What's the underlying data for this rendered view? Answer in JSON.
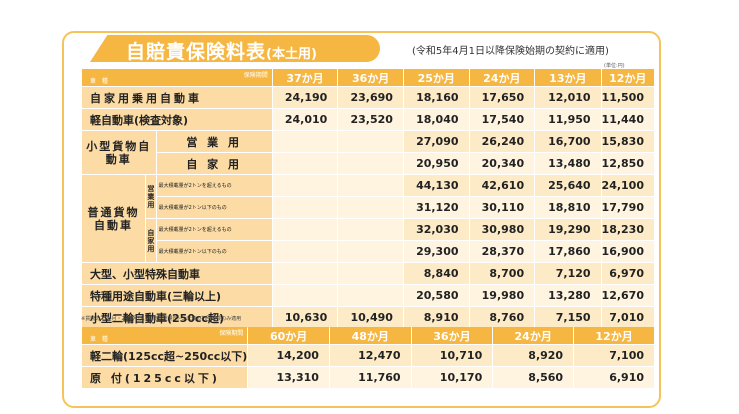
{
  "title": {
    "main": "自賠責保険料表",
    "sub": "(本土用)"
  },
  "note_date": "(令和5年4月1日以降保険始期の契約に適用)",
  "unit": "(単位:円)",
  "footnote": "※貨物の25か月・24か月は、車両総重量8トン未満の初回車検のみ適用",
  "corner": {
    "period": "保険期間",
    "car": "車 種"
  },
  "table1": {
    "headers": [
      "37か月",
      "36か月",
      "25か月",
      "24か月",
      "13か月",
      "12か月"
    ],
    "rows": {
      "private": {
        "label": "自家用乗用自動車",
        "values": [
          "24,190",
          "23,690",
          "18,160",
          "17,650",
          "12,010",
          "11,500"
        ]
      },
      "kei": {
        "label": "軽自動車(検査対象)",
        "values": [
          "24,010",
          "23,520",
          "18,040",
          "17,540",
          "11,950",
          "11,440"
        ]
      },
      "small_cargo": {
        "label": "小型貨物自動車",
        "commercial": {
          "label": "営 業 用",
          "values": [
            "",
            "",
            "27,090",
            "26,240",
            "16,700",
            "15,830"
          ]
        },
        "private": {
          "label": "自 家 用",
          "values": [
            "",
            "",
            "20,950",
            "20,340",
            "13,480",
            "12,850"
          ]
        }
      },
      "normal_cargo": {
        "label": "普通貨物自動車",
        "commercial_label": "営業用",
        "private_label": "自家用",
        "over_label": "最大積載量が2トンを超えるもの",
        "under_label": "最大積載量が2トン以下のもの",
        "commercial_over": [
          "",
          "",
          "44,130",
          "42,610",
          "25,640",
          "24,100"
        ],
        "commercial_under": [
          "",
          "",
          "31,120",
          "30,110",
          "18,810",
          "17,790"
        ],
        "private_over": [
          "",
          "",
          "32,030",
          "30,980",
          "19,290",
          "18,230"
        ],
        "private_under": [
          "",
          "",
          "29,300",
          "28,370",
          "17,860",
          "16,900"
        ]
      },
      "special": {
        "label": "大型、小型特殊自動車",
        "values": [
          "",
          "",
          "8,840",
          "8,700",
          "7,120",
          "6,970"
        ]
      },
      "special_purpose": {
        "label": "特種用途自動車(三輪以上)",
        "values": [
          "",
          "",
          "20,580",
          "19,980",
          "13,280",
          "12,670"
        ]
      },
      "small_moto": {
        "label": "小型二輪自動車(250cc超)",
        "values": [
          "10,630",
          "10,490",
          "8,910",
          "8,760",
          "7,150",
          "7,010"
        ]
      }
    }
  },
  "table2": {
    "headers": [
      "60か月",
      "48か月",
      "36か月",
      "24か月",
      "12か月"
    ],
    "rows": {
      "light_moto": {
        "label": "軽二輪(125cc超~250cc以下)",
        "values": [
          "14,200",
          "12,470",
          "10,710",
          "8,920",
          "7,100"
        ]
      },
      "moped": {
        "label": "原 付(125cc以下)",
        "values": [
          "13,310",
          "11,760",
          "10,170",
          "8,560",
          "6,910"
        ]
      }
    }
  }
}
